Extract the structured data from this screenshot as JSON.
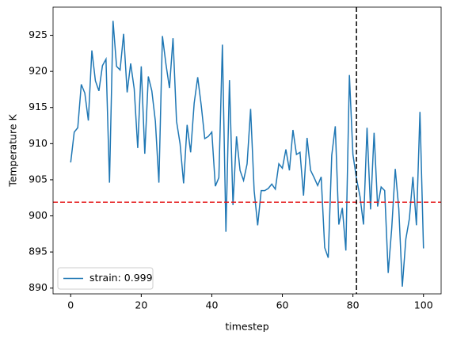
{
  "chart_data": {
    "type": "line",
    "xlabel": "timestep",
    "ylabel": "Temperature K",
    "x": [
      0,
      1,
      2,
      3,
      4,
      5,
      6,
      7,
      8,
      9,
      10,
      11,
      12,
      13,
      14,
      15,
      16,
      17,
      18,
      19,
      20,
      21,
      22,
      23,
      24,
      25,
      26,
      27,
      28,
      29,
      30,
      31,
      32,
      33,
      34,
      35,
      36,
      37,
      38,
      39,
      40,
      41,
      42,
      43,
      44,
      45,
      46,
      47,
      48,
      49,
      50,
      51,
      52,
      53,
      54,
      55,
      56,
      57,
      58,
      59,
      60,
      61,
      62,
      63,
      64,
      65,
      66,
      67,
      68,
      69,
      70,
      71,
      72,
      73,
      74,
      75,
      76,
      77,
      78,
      79,
      80,
      81,
      82,
      83,
      84,
      85,
      86,
      87,
      88,
      89,
      90,
      91,
      92,
      93,
      94,
      95,
      96,
      97,
      98,
      99,
      100
    ],
    "series": [
      {
        "name": "strain: 0.999",
        "color": "#1f77b4",
        "values": [
          907.4,
          911.6,
          912.2,
          918.2,
          917.0,
          913.2,
          922.9,
          918.7,
          917.3,
          920.8,
          921.7,
          904.6,
          927.0,
          920.7,
          920.2,
          925.2,
          917.1,
          921.1,
          917.6,
          909.4,
          920.7,
          908.6,
          919.3,
          917.3,
          913.1,
          904.6,
          924.9,
          921.0,
          917.7,
          924.6,
          913.1,
          910.0,
          904.5,
          912.6,
          908.8,
          915.6,
          919.2,
          915.3,
          910.7,
          911.0,
          911.6,
          904.1,
          905.3,
          923.7,
          897.8,
          918.8,
          901.5,
          911.0,
          906.3,
          904.9,
          907.2,
          914.8,
          903.5,
          898.7,
          903.5,
          903.5,
          903.8,
          904.4,
          903.7,
          907.2,
          906.6,
          909.2,
          906.3,
          911.9,
          908.5,
          908.8,
          902.8,
          910.8,
          906.3,
          905.3,
          904.2,
          905.4,
          895.6,
          894.2,
          908.4,
          912.4,
          898.8,
          901.1,
          895.2,
          919.5,
          908.5,
          905.2,
          902.7,
          898.8,
          912.2,
          900.9,
          911.5,
          901.3,
          904.0,
          903.5,
          892.1,
          898.3,
          906.5,
          901.0,
          890.2,
          896.8,
          899.6,
          905.4,
          898.7,
          914.4,
          895.5
        ]
      }
    ],
    "hline": {
      "value": 901.9,
      "color": "#e41a1c"
    },
    "vline": {
      "value": 81,
      "color": "#000000"
    },
    "xlim": [
      -5,
      105
    ],
    "xticks": [
      0,
      20,
      40,
      60,
      80,
      100
    ],
    "ylim": [
      889.2,
      928.9
    ],
    "yticks": [
      890,
      895,
      900,
      905,
      910,
      915,
      920,
      925
    ],
    "legend": "lower left"
  }
}
